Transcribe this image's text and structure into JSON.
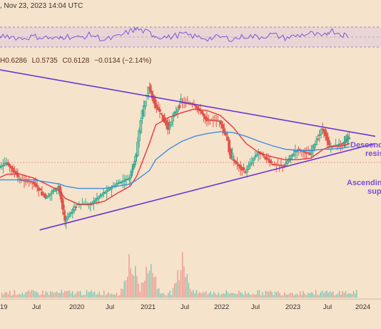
{
  "header": {
    "timestamp": ", Nov 23, 2023 14:04 UTC"
  },
  "ohlc": {
    "high": "H0.6286",
    "low": "L0.5735",
    "close": "C0.6128",
    "change": "−0.0134 (−2.14%)"
  },
  "annotations": {
    "descending_line1": "Descendin",
    "descending_line2": "resis",
    "ascending_line1": "Ascending",
    "ascending_line2": "supp"
  },
  "chart_data": {
    "type": "candlestick",
    "x_ticks": [
      "19",
      "Jul",
      "2020",
      "Jul",
      "2021",
      "Jul",
      "2022",
      "Jul",
      "2023",
      "Jul",
      "2024"
    ],
    "x_range": [
      "2019-04",
      "2024-03"
    ],
    "colors": {
      "up": "#36a98f",
      "down": "#e0554d",
      "ma_red": "#e8343b",
      "ma_blue": "#3d8fe0",
      "trendline": "#6b35d6",
      "rsi": "#7b5bd6",
      "background": "#f6e3cb"
    },
    "price_series": {
      "name": "close",
      "x": [
        "2019-04",
        "2019-06",
        "2019-08",
        "2019-10",
        "2019-12",
        "2020-02",
        "2020-03",
        "2020-05",
        "2020-07",
        "2020-09",
        "2020-11",
        "2021-01",
        "2021-02",
        "2021-04",
        "2021-05",
        "2021-07",
        "2021-09",
        "2021-11",
        "2022-01",
        "2022-03",
        "2022-05",
        "2022-07",
        "2022-09",
        "2022-11",
        "2023-01",
        "2023-03",
        "2023-05",
        "2023-07",
        "2023-08",
        "2023-10",
        "2023-11"
      ],
      "values": [
        0.35,
        0.4,
        0.3,
        0.29,
        0.22,
        0.27,
        0.15,
        0.2,
        0.2,
        0.24,
        0.28,
        0.31,
        0.45,
        1.4,
        1.05,
        0.7,
        1.1,
        1.05,
        0.82,
        0.8,
        0.42,
        0.34,
        0.48,
        0.39,
        0.38,
        0.5,
        0.46,
        0.7,
        0.52,
        0.55,
        0.61
      ]
    },
    "moving_averages": [
      {
        "values": [
          0.3,
          0.33,
          0.33,
          0.31,
          0.28,
          0.25,
          0.22,
          0.2,
          0.2,
          0.21,
          0.24,
          0.27,
          0.32,
          0.55,
          0.75,
          0.85,
          0.92,
          0.98,
          0.95,
          0.88,
          0.72,
          0.55,
          0.47,
          0.44,
          0.42,
          0.42,
          0.43,
          0.5,
          0.52,
          0.53,
          0.55
        ]
      },
      {
        "values": [
          0.3,
          0.3,
          0.3,
          0.3,
          0.29,
          0.28,
          0.27,
          0.26,
          0.26,
          0.26,
          0.27,
          0.28,
          0.3,
          0.35,
          0.42,
          0.5,
          0.57,
          0.62,
          0.65,
          0.67,
          0.66,
          0.62,
          0.57,
          0.53,
          0.5,
          0.49,
          0.49,
          0.5,
          0.5,
          0.51,
          0.52
        ]
      }
    ],
    "trendlines": [
      {
        "name": "Descending resistance",
        "from": [
          "2019-03",
          1.95
        ],
        "to": [
          "2024-03",
          0.62
        ]
      },
      {
        "name": "Ascending support",
        "from": [
          "2019-11",
          0.13
        ],
        "to": [
          "2024-03",
          0.55
        ]
      }
    ],
    "volume_peaks": [
      "2021-01",
      "2021-04",
      "2021-09"
    ],
    "rsi": {
      "levels": [
        70,
        50,
        30
      ],
      "values": [
        50,
        53,
        47,
        51,
        49,
        46,
        52,
        48,
        55,
        44,
        50,
        62,
        66,
        58,
        52,
        49,
        56,
        51,
        47,
        50,
        46,
        52,
        50,
        55,
        48,
        53,
        57,
        50,
        64,
        55,
        52
      ]
    }
  }
}
